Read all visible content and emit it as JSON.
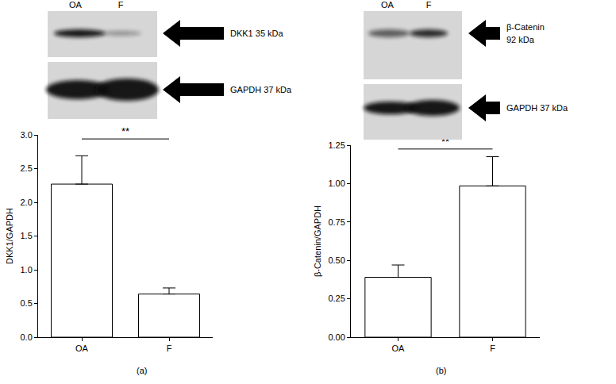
{
  "chart_data": [
    {
      "type": "bar",
      "panel_label": "(a)",
      "categories": [
        "OA",
        "F"
      ],
      "values": [
        2.27,
        0.64
      ],
      "errors": [
        0.42,
        0.09
      ],
      "colors": [
        "#ffffff",
        "#ffffff"
      ],
      "y_label": "DKK1/GAPDH",
      "ylim": [
        0,
        3
      ],
      "yticks": [
        {
          "value": 0,
          "label": "0.0"
        },
        {
          "value": 0.5,
          "label": "0.5"
        },
        {
          "value": 1,
          "label": "1.0"
        },
        {
          "value": 1.5,
          "label": "1.5"
        },
        {
          "value": 2,
          "label": "2.0"
        },
        {
          "value": 2.5,
          "label": "2.5"
        },
        {
          "value": 3,
          "label": "3.0"
        }
      ],
      "grid": false,
      "annotations": [
        {
          "text": "**",
          "between": [
            "OA",
            "F"
          ]
        }
      ]
    },
    {
      "type": "bar",
      "panel_label": "(b)",
      "categories": [
        "OA",
        "F"
      ],
      "values": [
        0.39,
        0.985
      ],
      "errors": [
        0.08,
        0.19
      ],
      "colors": [
        "#ffffff",
        "#ffffff"
      ],
      "y_label": "β-Catenin/GAPDH",
      "ylim": [
        0,
        1.25
      ],
      "yticks": [
        {
          "value": 0,
          "label": "0.00"
        },
        {
          "value": 0.25,
          "label": "0.25"
        },
        {
          "value": 0.5,
          "label": "0.50"
        },
        {
          "value": 0.75,
          "label": "0.75"
        },
        {
          "value": 1,
          "label": "1.00"
        },
        {
          "value": 1.25,
          "label": "1.25"
        }
      ],
      "grid": false,
      "annotations": [
        {
          "text": "**",
          "between": [
            "OA",
            "F"
          ]
        }
      ]
    }
  ],
  "blots": [
    {
      "lanes": [
        "OA",
        "F"
      ],
      "bands": [
        {
          "label": [
            "DKK1 35 kDa"
          ]
        },
        {
          "label": [
            "GAPDH 37 kDa"
          ]
        }
      ]
    },
    {
      "lanes": [
        "OA",
        "F"
      ],
      "bands": [
        {
          "label": [
            "β-Catenin",
            "92 kDa"
          ]
        },
        {
          "label": [
            "GAPDH 37 kDa"
          ]
        }
      ]
    }
  ]
}
